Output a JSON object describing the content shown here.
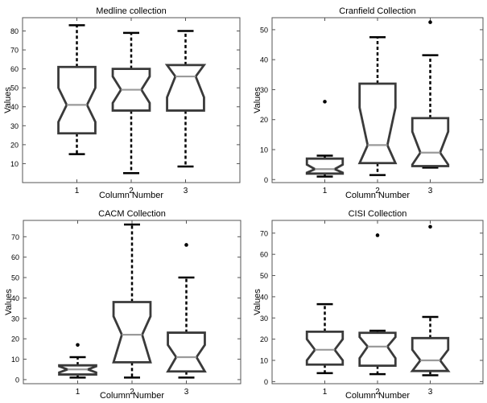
{
  "chart_data": [
    {
      "type": "boxplot",
      "title": "Medline collection",
      "xlabel": "Column Number",
      "ylabel": "Values",
      "ylim": [
        0,
        87
      ],
      "yticks": [
        10,
        20,
        30,
        40,
        50,
        60,
        70,
        80
      ],
      "categories": [
        "1",
        "2",
        "3"
      ],
      "boxes": [
        {
          "min": 15,
          "q1": 26,
          "median": 41,
          "q3": 61,
          "max": 83,
          "notch_low": 32,
          "notch_high": 50,
          "outliers": []
        },
        {
          "min": 5,
          "q1": 38,
          "median": 49,
          "q3": 60,
          "max": 79,
          "notch_low": 42,
          "notch_high": 56,
          "outliers": []
        },
        {
          "min": 8.5,
          "q1": 38,
          "median": 56,
          "q3": 62,
          "max": 80,
          "notch_low": 45,
          "notch_high": 62,
          "outliers": []
        }
      ]
    },
    {
      "type": "boxplot",
      "title": "Cranfield Collection",
      "xlabel": "Column Number",
      "ylabel": "Values",
      "ylim": [
        -1,
        54
      ],
      "yticks": [
        0,
        10,
        20,
        30,
        40,
        50
      ],
      "categories": [
        "1",
        "2",
        "3"
      ],
      "boxes": [
        {
          "min": 1,
          "q1": 2,
          "median": 3.5,
          "q3": 7,
          "max": 8,
          "notch_low": 2.3,
          "notch_high": 5,
          "outliers": [
            26
          ]
        },
        {
          "min": 1.5,
          "q1": 5.5,
          "median": 11.5,
          "q3": 32,
          "max": 47.5,
          "notch_low": 5.5,
          "notch_high": 24,
          "outliers": []
        },
        {
          "min": 4,
          "q1": 4.5,
          "median": 9,
          "q3": 20.5,
          "max": 41.5,
          "notch_low": 5,
          "notch_high": 16,
          "outliers": [
            52.5
          ]
        }
      ]
    },
    {
      "type": "boxplot",
      "title": "CACM Collection",
      "xlabel": "Column Number",
      "ylabel": "Values",
      "ylim": [
        -2,
        78
      ],
      "yticks": [
        0,
        10,
        20,
        30,
        40,
        50,
        60,
        70
      ],
      "categories": [
        "1",
        "2",
        "3"
      ],
      "boxes": [
        {
          "min": 1,
          "q1": 2.5,
          "median": 5,
          "q3": 7,
          "max": 11,
          "notch_low": 3.5,
          "notch_high": 6.5,
          "outliers": [
            17
          ]
        },
        {
          "min": 1,
          "q1": 8.5,
          "median": 22,
          "q3": 38,
          "max": 76,
          "notch_low": 8.5,
          "notch_high": 31,
          "outliers": []
        },
        {
          "min": 1,
          "q1": 4,
          "median": 11,
          "q3": 23,
          "max": 50,
          "notch_low": 4,
          "notch_high": 17,
          "outliers": [
            66
          ]
        }
      ]
    },
    {
      "type": "boxplot",
      "title": "CISI Collection",
      "xlabel": "Column Number",
      "ylabel": "Values",
      "ylim": [
        -1,
        76
      ],
      "yticks": [
        0,
        10,
        20,
        30,
        40,
        50,
        60,
        70
      ],
      "categories": [
        "1",
        "2",
        "3"
      ],
      "boxes": [
        {
          "min": 4,
          "q1": 8,
          "median": 15,
          "q3": 23.5,
          "max": 36.5,
          "notch_low": 10,
          "notch_high": 20,
          "outliers": []
        },
        {
          "min": 3.5,
          "q1": 7.5,
          "median": 16.5,
          "q3": 23,
          "max": 24,
          "notch_low": 11,
          "notch_high": 21,
          "outliers": [
            69
          ]
        },
        {
          "min": 3,
          "q1": 5,
          "median": 10,
          "q3": 20.5,
          "max": 30.5,
          "notch_low": 5,
          "notch_high": 15,
          "outliers": [
            73
          ]
        }
      ]
    }
  ],
  "style": {
    "box_color": "#3a3a3a",
    "median_color": "#9a9a9a",
    "whisker_color": "#000000",
    "axis_color": "#555555"
  }
}
